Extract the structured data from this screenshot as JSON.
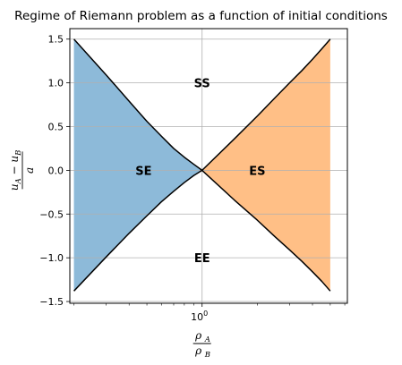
{
  "chart_data": {
    "type": "area",
    "title": "Regime of Riemann problem as a function of initial conditions",
    "xlabel": {
      "numerator": "ρ",
      "numerator_sub": "A",
      "denominator": "ρ",
      "denominator_sub": "B"
    },
    "ylabel": {
      "numerator": "u",
      "numerator_sub1": "A",
      "minus": "−",
      "numerator2": "u",
      "numerator_sub2": "B",
      "denominator": "a"
    },
    "xscale": "log",
    "xlim": [
      0.19,
      6.2
    ],
    "ylim": [
      -1.52,
      1.62
    ],
    "x_tick_label": {
      "base": "10",
      "exp": "0"
    },
    "y_ticks": [
      {
        "value": 1.5,
        "label": "1.5"
      },
      {
        "value": 1.0,
        "label": "1.0"
      },
      {
        "value": 0.5,
        "label": "0.5"
      },
      {
        "value": 0.0,
        "label": "0.0"
      },
      {
        "value": -0.5,
        "label": "−0.5"
      },
      {
        "value": -1.0,
        "label": "−1.0"
      },
      {
        "value": -1.5,
        "label": "−1.5"
      }
    ],
    "grid": true,
    "x_range": [
      0.2,
      5.0
    ],
    "regions": [
      {
        "label": "SE",
        "color": "#8dbad9",
        "side": "left",
        "label_x": 0.48,
        "label_y": 0.0
      },
      {
        "label": "ES",
        "color": "#ffbf86",
        "side": "right",
        "label_x": 2.0,
        "label_y": 0.0
      },
      {
        "label": "SS",
        "label_x": 1.0,
        "label_y": 1.0
      },
      {
        "label": "EE",
        "label_x": 1.0,
        "label_y": -1.0
      }
    ],
    "boundary_curves": [
      {
        "x": [
          0.2,
          0.3,
          0.4,
          0.5,
          0.6,
          0.7,
          0.8,
          0.9,
          1.0
        ],
        "y": [
          1.5,
          1.09,
          0.79,
          0.56,
          0.39,
          0.25,
          0.15,
          0.07,
          0.0
        ]
      },
      {
        "x": [
          0.2,
          0.3,
          0.4,
          0.5,
          0.6,
          0.7,
          0.8,
          0.9,
          1.0
        ],
        "y": [
          -1.38,
          -0.99,
          -0.72,
          -0.52,
          -0.36,
          -0.24,
          -0.14,
          -0.06,
          0.0
        ]
      },
      {
        "x": [
          1.0,
          1.5,
          2.0,
          2.5,
          3.0,
          3.5,
          4.0,
          4.5,
          5.0
        ],
        "y": [
          0.0,
          0.36,
          0.62,
          0.83,
          1.0,
          1.14,
          1.27,
          1.39,
          1.5
        ]
      },
      {
        "x": [
          1.0,
          1.5,
          2.0,
          2.5,
          3.0,
          3.5,
          4.0,
          4.5,
          5.0
        ],
        "y": [
          0.0,
          -0.34,
          -0.57,
          -0.76,
          -0.91,
          -1.04,
          -1.16,
          -1.27,
          -1.38
        ]
      }
    ]
  }
}
